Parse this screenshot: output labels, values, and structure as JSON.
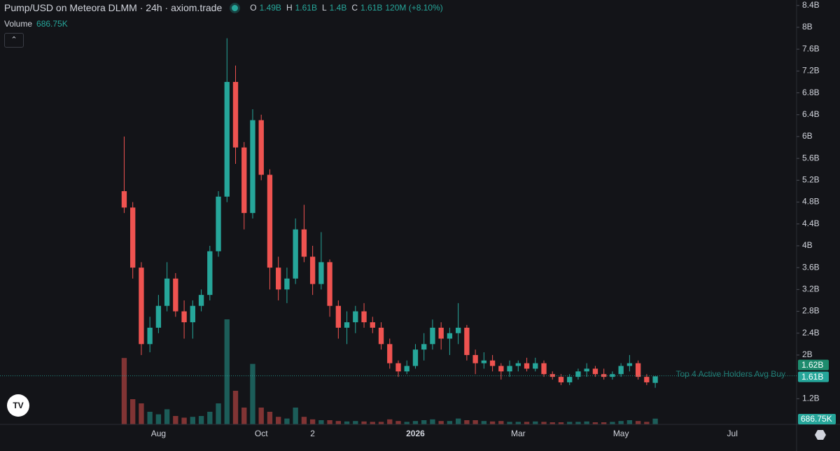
{
  "chart_data": {
    "type": "candlestick",
    "title": "Pump/USD on Meteora DLMM · 24h · axiom.trade",
    "ohlc_legend": [
      {
        "key": "O",
        "value": "1.49B"
      },
      {
        "key": "H",
        "value": "1.61B"
      },
      {
        "key": "L",
        "value": "1.4B"
      },
      {
        "key": "C",
        "value": "1.61B"
      }
    ],
    "change": "120M (+8.10%)",
    "volume_title": "Volume",
    "volume_value_label": "686.75K",
    "categories": [
      null,
      null,
      null,
      null,
      null,
      null,
      null,
      null,
      null,
      null,
      null,
      null,
      null,
      null,
      null,
      null,
      null,
      null,
      "Aug",
      null,
      null,
      null,
      null,
      null,
      null,
      null,
      null,
      null,
      null,
      null,
      "Oct",
      null,
      null,
      null,
      null,
      null,
      "2",
      null,
      null,
      null,
      null,
      null,
      null,
      null,
      null,
      null,
      null,
      null,
      "2026",
      null,
      null,
      null,
      null,
      null,
      null,
      null,
      null,
      null,
      null,
      null,
      "Mar",
      null,
      null,
      null,
      null,
      null,
      null,
      null,
      null,
      null,
      null,
      null,
      "May",
      null,
      null,
      null,
      null,
      null,
      null,
      null,
      null,
      null,
      null,
      null,
      null,
      "Jul",
      null,
      null,
      null,
      null,
      null,
      null,
      null
    ],
    "open": [
      null,
      null,
      null,
      null,
      null,
      null,
      null,
      null,
      null,
      null,
      null,
      null,
      null,
      null,
      5.0,
      4.7,
      3.6,
      2.2,
      2.5,
      2.9,
      3.4,
      2.8,
      2.6,
      2.9,
      3.1,
      3.9,
      4.9,
      7.0,
      5.8,
      4.6,
      6.3,
      5.3,
      3.6,
      3.2,
      3.4,
      4.3,
      3.8,
      3.3,
      3.7,
      2.9,
      2.5,
      2.6,
      2.8,
      2.6,
      2.5,
      2.2,
      1.85,
      1.7,
      1.8,
      2.1,
      2.2,
      2.5,
      2.3,
      2.4,
      2.5,
      2.0,
      1.85,
      1.9,
      1.8,
      1.7,
      1.8,
      1.85,
      1.75,
      1.85,
      1.65,
      1.6,
      1.5,
      1.6,
      1.7,
      1.75,
      1.65,
      1.6,
      1.65,
      1.8,
      1.85,
      1.6,
      1.49,
      null,
      null,
      null,
      null,
      null,
      null,
      null,
      null,
      null,
      null,
      null,
      null,
      null,
      null,
      null,
      null
    ],
    "high": [
      null,
      null,
      null,
      null,
      null,
      null,
      null,
      null,
      null,
      null,
      null,
      null,
      null,
      null,
      6.0,
      4.8,
      3.7,
      2.7,
      3.1,
      3.7,
      3.5,
      3.0,
      3.0,
      3.2,
      4.0,
      5.0,
      7.8,
      7.3,
      5.9,
      6.5,
      6.4,
      5.4,
      3.8,
      3.6,
      4.5,
      4.75,
      4.0,
      4.25,
      3.75,
      3.0,
      2.8,
      2.9,
      2.95,
      2.7,
      2.6,
      2.3,
      1.9,
      1.9,
      2.2,
      2.4,
      2.65,
      2.6,
      2.5,
      2.95,
      2.55,
      2.1,
      2.05,
      2.0,
      1.85,
      1.9,
      1.9,
      1.95,
      1.95,
      1.9,
      1.7,
      1.65,
      1.65,
      1.75,
      1.85,
      1.8,
      1.75,
      1.7,
      1.85,
      2.0,
      1.9,
      1.65,
      1.61,
      null,
      null,
      null,
      null,
      null,
      null,
      null,
      null,
      null,
      null,
      null,
      null,
      null,
      null,
      null,
      null
    ],
    "low": [
      null,
      null,
      null,
      null,
      null,
      null,
      null,
      null,
      null,
      null,
      null,
      null,
      null,
      null,
      4.6,
      3.4,
      2.0,
      2.05,
      2.4,
      2.8,
      2.7,
      2.3,
      2.3,
      2.8,
      3.0,
      3.8,
      4.8,
      5.5,
      4.3,
      4.5,
      5.2,
      3.2,
      3.0,
      2.95,
      3.3,
      3.7,
      3.1,
      3.2,
      2.7,
      2.3,
      2.2,
      2.4,
      2.5,
      2.4,
      2.1,
      1.75,
      1.6,
      1.65,
      1.75,
      1.9,
      2.1,
      2.1,
      2.0,
      2.2,
      1.9,
      1.65,
      1.75,
      1.7,
      1.55,
      1.6,
      1.7,
      1.7,
      1.7,
      1.6,
      1.55,
      1.45,
      1.45,
      1.55,
      1.6,
      1.6,
      1.55,
      1.55,
      1.6,
      1.7,
      1.55,
      1.45,
      1.4,
      null,
      null,
      null,
      null,
      null,
      null,
      null,
      null,
      null,
      null,
      null,
      null,
      null,
      null,
      null,
      null
    ],
    "close": [
      null,
      null,
      null,
      null,
      null,
      null,
      null,
      null,
      null,
      null,
      null,
      null,
      null,
      null,
      4.7,
      3.6,
      2.2,
      2.5,
      2.9,
      3.4,
      2.8,
      2.6,
      2.9,
      3.1,
      3.9,
      4.9,
      7.0,
      5.8,
      4.6,
      6.3,
      5.3,
      3.6,
      3.2,
      3.4,
      4.3,
      3.8,
      3.3,
      3.7,
      2.9,
      2.5,
      2.6,
      2.8,
      2.6,
      2.5,
      2.2,
      1.85,
      1.7,
      1.8,
      2.1,
      2.2,
      2.5,
      2.3,
      2.4,
      2.5,
      2.0,
      1.85,
      1.9,
      1.8,
      1.7,
      1.8,
      1.85,
      1.75,
      1.85,
      1.65,
      1.6,
      1.5,
      1.6,
      1.7,
      1.75,
      1.65,
      1.6,
      1.65,
      1.8,
      1.85,
      1.6,
      1.5,
      1.61,
      null,
      null,
      null,
      null,
      null,
      null,
      null,
      null,
      null,
      null,
      null,
      null,
      null,
      null,
      null,
      null
    ],
    "volume": [
      null,
      null,
      null,
      null,
      null,
      null,
      null,
      null,
      null,
      null,
      null,
      null,
      null,
      null,
      7900,
      3000,
      2500,
      1500,
      1200,
      1800,
      1000,
      800,
      900,
      1000,
      1500,
      2500,
      12500,
      4000,
      2000,
      7200,
      2000,
      1500,
      900,
      700,
      2000,
      900,
      600,
      500,
      500,
      400,
      350,
      400,
      350,
      300,
      300,
      600,
      400,
      300,
      400,
      500,
      600,
      400,
      400,
      700,
      500,
      500,
      400,
      350,
      400,
      300,
      300,
      300,
      350,
      300,
      250,
      250,
      300,
      300,
      350,
      250,
      250,
      300,
      400,
      500,
      400,
      300,
      686.75,
      null,
      null,
      null,
      null,
      null,
      null,
      null,
      null,
      null,
      null,
      null,
      null,
      null,
      null,
      null,
      null
    ],
    "up_color": "#26a69a",
    "down_color": "#ef5350",
    "ylim": [
      0.73,
      8.5
    ],
    "yticks": [
      {
        "value": 1.2,
        "label": "1.2B"
      },
      {
        "value": 2,
        "label": "2B"
      },
      {
        "value": 2.4,
        "label": "2.4B"
      },
      {
        "value": 2.8,
        "label": "2.8B"
      },
      {
        "value": 3.2,
        "label": "3.2B"
      },
      {
        "value": 3.6,
        "label": "3.6B"
      },
      {
        "value": 4,
        "label": "4B"
      },
      {
        "value": 4.4,
        "label": "4.4B"
      },
      {
        "value": 4.8,
        "label": "4.8B"
      },
      {
        "value": 5.2,
        "label": "5.2B"
      },
      {
        "value": 5.6,
        "label": "5.6B"
      },
      {
        "value": 6,
        "label": "6B"
      },
      {
        "value": 6.4,
        "label": "6.4B"
      },
      {
        "value": 6.8,
        "label": "6.8B"
      },
      {
        "value": 7.2,
        "label": "7.2B"
      },
      {
        "value": 7.6,
        "label": "7.6B"
      },
      {
        "value": 8,
        "label": "8B"
      },
      {
        "value": 8.4,
        "label": "8.4B"
      }
    ],
    "volume_lim": [
      0,
      15000
    ],
    "reference_line": {
      "label": "Top 4 Active Holders Avg Buy",
      "value": 1.62,
      "value_label": "1.62B"
    },
    "last_price_label": "1.61B"
  }
}
